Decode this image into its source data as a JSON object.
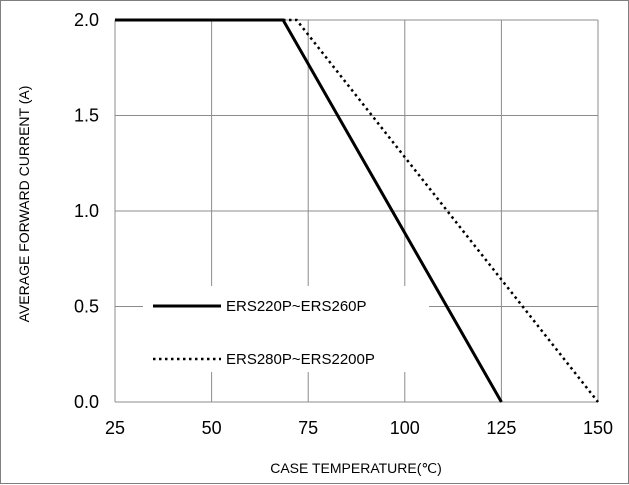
{
  "chart_data": {
    "type": "line",
    "title": "",
    "xlabel": "CASE  TEMPERATURE(℃)",
    "ylabel": "AVERAGE FORWARD CURRENT (A)",
    "xlim": [
      25,
      150
    ],
    "ylim": [
      0,
      2.0
    ],
    "x_ticks": [
      25,
      50,
      75,
      100,
      125,
      150
    ],
    "y_ticks": [
      0.0,
      0.5,
      1.0,
      1.5,
      2.0
    ],
    "x_tick_labels": [
      "25",
      "50",
      "75",
      "100",
      "125",
      "150"
    ],
    "y_tick_labels": [
      "0.0",
      "0.5",
      "1.0",
      "1.5",
      "2.0"
    ],
    "grid": true,
    "legend_position": "center-left",
    "series": [
      {
        "name": "ERS220P~ERS260P",
        "style": "solid",
        "color": "#000000",
        "points": [
          [
            25,
            2.0
          ],
          [
            68.5,
            2.0
          ],
          [
            125,
            0.0
          ]
        ]
      },
      {
        "name": "ERS280P~ERS2200P",
        "style": "dotted",
        "color": "#000000",
        "points": [
          [
            25,
            2.0
          ],
          [
            72,
            2.0
          ],
          [
            150,
            0.0
          ]
        ]
      }
    ]
  }
}
